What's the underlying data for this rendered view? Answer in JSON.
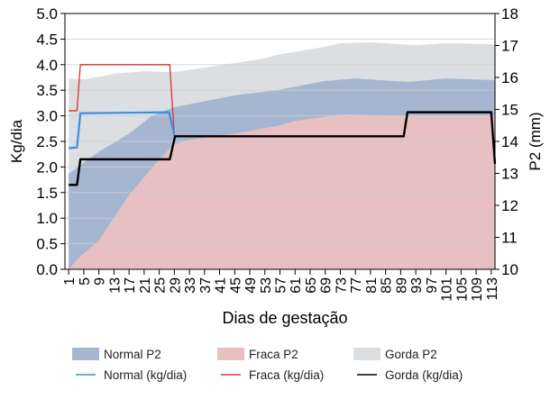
{
  "chart_data": {
    "type": "area+line",
    "xlabel": "Dias de gestação",
    "ylabel_left": "Kg/dia",
    "ylabel_right": "P2 (mm)",
    "xlim": [
      0,
      114
    ],
    "ylim_left": [
      0,
      5
    ],
    "ylim_right": [
      10,
      18
    ],
    "x_ticks": [
      1,
      5,
      9,
      13,
      17,
      21,
      25,
      29,
      33,
      37,
      41,
      45,
      49,
      53,
      57,
      61,
      65,
      69,
      73,
      77,
      81,
      85,
      89,
      93,
      97,
      101,
      105,
      109,
      113
    ],
    "y_left_ticks": [
      "0.0",
      "0.5",
      "1.0",
      "1.5",
      "2.0",
      "2.5",
      "3.0",
      "3.5",
      "4.0",
      "4.5",
      "5.0"
    ],
    "y_right_ticks": [
      "10",
      "11",
      "12",
      "13",
      "14",
      "15",
      "16",
      "17",
      "18"
    ],
    "grid": "horizontal",
    "legend_placement": "bottom",
    "areas": [
      {
        "name": "Gorda P2",
        "axis": "right",
        "color": "#dcdfe1",
        "x": [
          1,
          5,
          13,
          21,
          29,
          45,
          53,
          56,
          69,
          73,
          81,
          89,
          93,
          101,
          113,
          114
        ],
        "y": [
          15.97,
          15.94,
          16.11,
          16.2,
          16.17,
          16.45,
          16.6,
          16.7,
          16.96,
          17.07,
          17.1,
          17.04,
          17.01,
          17.07,
          17.04,
          17.03
        ]
      },
      {
        "name": "Normal P2",
        "axis": "right",
        "color": "#a6b6d0",
        "x": [
          1,
          9,
          17,
          23,
          29,
          45,
          56,
          69,
          77,
          91,
          101,
          113,
          114
        ],
        "y": [
          12.99,
          13.68,
          14.24,
          14.8,
          15.07,
          15.44,
          15.6,
          15.89,
          15.97,
          15.86,
          15.97,
          15.92,
          15.92
        ]
      },
      {
        "name": "Fraca P2",
        "axis": "right",
        "color": "#e8c0c2",
        "x": [
          1,
          4,
          9,
          17,
          21,
          25,
          29,
          33,
          45,
          57,
          61,
          69,
          73,
          89,
          113,
          114
        ],
        "y": [
          10,
          10.4,
          10.9,
          12.32,
          12.88,
          13.44,
          13.92,
          14.05,
          14.24,
          14.5,
          14.64,
          14.77,
          14.85,
          14.8,
          14.8,
          14.8
        ]
      }
    ],
    "lines": [
      {
        "name": "Fraca (kg/dia)",
        "axis": "left",
        "color": "#e03030",
        "width": 1.3,
        "x": [
          1,
          3.2,
          4.1,
          27.8,
          29
        ],
        "y": [
          3.1,
          3.1,
          4.0,
          4.0,
          2.6
        ]
      },
      {
        "name": "Normal (kg/dia)",
        "axis": "left",
        "color": "#3a8ee6",
        "width": 2.2,
        "x": [
          1,
          3.2,
          4.1,
          27.6,
          29
        ],
        "y": [
          2.37,
          2.38,
          3.05,
          3.07,
          2.62
        ]
      },
      {
        "name": "Gorda (kg/dia)",
        "axis": "left",
        "color": "#000000",
        "width": 2.4,
        "x": [
          1,
          3.2,
          4.1,
          27.8,
          29.2,
          89.8,
          90.8,
          113,
          114
        ],
        "y": [
          1.65,
          1.65,
          2.15,
          2.15,
          2.6,
          2.6,
          3.07,
          3.07,
          2.06
        ]
      }
    ],
    "legend": [
      {
        "label": "Normal P2",
        "kind": "area",
        "color": "#a6b6d0"
      },
      {
        "label": "Fraca P2",
        "kind": "area",
        "color": "#e8c0c2"
      },
      {
        "label": "Gorda P2",
        "kind": "area",
        "color": "#dcdfe1"
      },
      {
        "label": "Normal (kg/dia)",
        "kind": "line",
        "color": "#3a8ee6"
      },
      {
        "label": "Fraca (kg/dia)",
        "kind": "line",
        "color": "#e03030"
      },
      {
        "label": "Gorda (kg/dia)",
        "kind": "line",
        "color": "#000000"
      }
    ]
  }
}
